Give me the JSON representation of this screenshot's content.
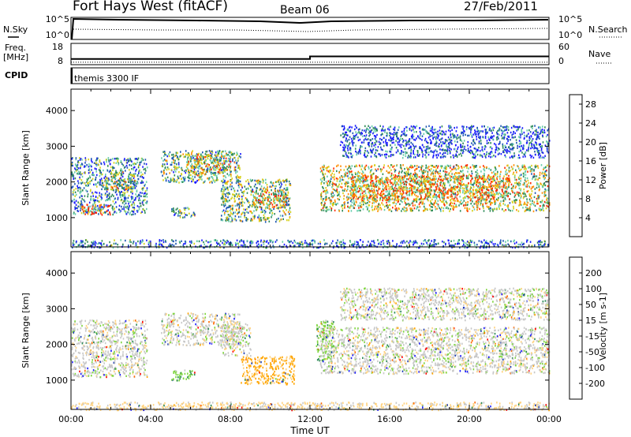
{
  "header": {
    "station": "Fort Hays West (fitACF)",
    "beam": "Beam 06",
    "date": "27/Feb/2011"
  },
  "strips": {
    "nsky_label": "N.Sky",
    "nsky_ticks": [
      "10^5",
      "10^0"
    ],
    "nsearch_label": "N.Search",
    "nsearch_ticks": [
      "10^5",
      "10^0"
    ],
    "freq_label_line1": "Freq.",
    "freq_label_line2": "[MHz]",
    "freq_ticks": [
      "18",
      "8"
    ],
    "nave_label": "Nave",
    "nave_ticks": [
      "60",
      "0"
    ],
    "cpid_label": "CPID",
    "cpid_value": "themis 3300 IF",
    "freq_step": {
      "time_h": 12.0,
      "before": 10.7,
      "after": 11.9
    },
    "nave_mean": 7
  },
  "chart_data": [
    {
      "type": "heatmap",
      "quantity": "Power",
      "ylabel": "Slant Range [km]",
      "y_ticks": [
        "4000",
        "3000",
        "2000",
        "1000"
      ],
      "ylim": [
        180,
        4600
      ],
      "x_ticks": [
        "00:00",
        "04:00",
        "08:00",
        "12:00",
        "16:00",
        "20:00",
        "00:00"
      ],
      "xlim_hours": [
        0,
        24
      ],
      "colorbar_label": "Power [dB]",
      "colorbar_ticks": [
        "28",
        "24",
        "20",
        "16",
        "12",
        "8",
        "4"
      ],
      "colorbar_range": [
        0,
        30
      ],
      "colors": [
        "#1a1aff",
        "#1f57b4",
        "#2e8b57",
        "#66cdaa",
        "#d6d11c",
        "#ff8c00",
        "#ff2a00"
      ],
      "regions": [
        {
          "t": [
            0.0,
            3.8
          ],
          "r": [
            1100,
            2700
          ],
          "level": 10
        },
        {
          "t": [
            1.6,
            3.2
          ],
          "r": [
            1800,
            2300
          ],
          "level": 17
        },
        {
          "t": [
            4.5,
            8.5
          ],
          "r": [
            2000,
            2900
          ],
          "level": 13
        },
        {
          "t": [
            5.8,
            8.0
          ],
          "r": [
            2200,
            2800
          ],
          "level": 19
        },
        {
          "t": [
            7.5,
            11.0
          ],
          "r": [
            900,
            2100
          ],
          "level": 14
        },
        {
          "t": [
            9.0,
            10.8
          ],
          "r": [
            1300,
            1800
          ],
          "level": 20
        },
        {
          "t": [
            5.0,
            6.2
          ],
          "r": [
            1000,
            1300
          ],
          "level": 13
        },
        {
          "t": [
            0.5,
            2.0
          ],
          "r": [
            1100,
            1400
          ],
          "level": 24
        },
        {
          "t": [
            12.5,
            24.0
          ],
          "r": [
            1200,
            2500
          ],
          "level": 18
        },
        {
          "t": [
            14.0,
            22.0
          ],
          "r": [
            1500,
            2200
          ],
          "level": 22
        },
        {
          "t": [
            13.5,
            24.0
          ],
          "r": [
            2700,
            3600
          ],
          "level": 6
        },
        {
          "t": [
            0.0,
            24.0
          ],
          "r": [
            180,
            400
          ],
          "level": 8
        }
      ]
    },
    {
      "type": "heatmap",
      "quantity": "Velocity",
      "ylabel": "Slant Range [km]",
      "y_ticks": [
        "4000",
        "3000",
        "2000",
        "1000"
      ],
      "ylim": [
        180,
        4600
      ],
      "x_ticks": [
        "00:00",
        "04:00",
        "08:00",
        "12:00",
        "16:00",
        "20:00",
        "00:00"
      ],
      "xlabel": "Time UT",
      "xlim_hours": [
        0,
        24
      ],
      "colorbar_label": "Velocity [m s-1]",
      "colorbar_ticks": [
        "200",
        "100",
        "50",
        "15",
        "-15",
        "-50",
        "-100",
        "-200"
      ],
      "colorbar_range": [
        -250,
        250
      ],
      "colors": [
        "#ff0000",
        "#ff6a00",
        "#ffa500",
        "#ffd27f",
        "#c8c8c8",
        "#7fd640",
        "#2e8b57",
        "#1f3fb4",
        "#1a1aff"
      ],
      "regions": [
        {
          "t": [
            0.0,
            3.8
          ],
          "r": [
            1100,
            2700
          ],
          "level": 0
        },
        {
          "t": [
            4.5,
            8.5
          ],
          "r": [
            2000,
            2900
          ],
          "level": 0
        },
        {
          "t": [
            7.5,
            9.0
          ],
          "r": [
            1700,
            2600
          ],
          "level": 0
        },
        {
          "t": [
            8.5,
            11.2
          ],
          "r": [
            900,
            1700
          ],
          "level": -90
        },
        {
          "t": [
            5.0,
            6.2
          ],
          "r": [
            1000,
            1300
          ],
          "level": 60
        },
        {
          "t": [
            12.3,
            13.2
          ],
          "r": [
            1500,
            2700
          ],
          "level": 60
        },
        {
          "t": [
            12.5,
            24.0
          ],
          "r": [
            1200,
            2500
          ],
          "level": 0
        },
        {
          "t": [
            13.5,
            24.0
          ],
          "r": [
            2700,
            3600
          ],
          "level": 0
        },
        {
          "t": [
            0.0,
            24.0
          ],
          "r": [
            180,
            400
          ],
          "level": -40
        }
      ]
    }
  ]
}
